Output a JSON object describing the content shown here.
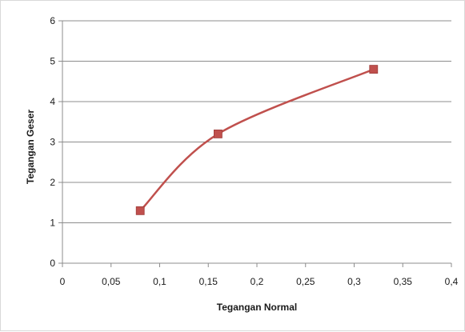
{
  "chart_data": {
    "type": "line",
    "title": "",
    "xlabel": "Tegangan Normal",
    "ylabel": "Tegangan Geser",
    "xlim": [
      0,
      0.4
    ],
    "ylim": [
      0,
      6
    ],
    "x_ticks": [
      "0",
      "0,05",
      "0,1",
      "0,15",
      "0,2",
      "0,25",
      "0,3",
      "0,35",
      "0,4"
    ],
    "y_ticks": [
      "0",
      "1",
      "2",
      "3",
      "4",
      "5",
      "6"
    ],
    "grid": "horizontal",
    "legend": "none",
    "smooth": true,
    "series": [
      {
        "color": "#c0504d",
        "marker": "square",
        "x": [
          0.08,
          0.16,
          0.32
        ],
        "y": [
          1.3,
          3.2,
          4.8
        ]
      }
    ]
  }
}
